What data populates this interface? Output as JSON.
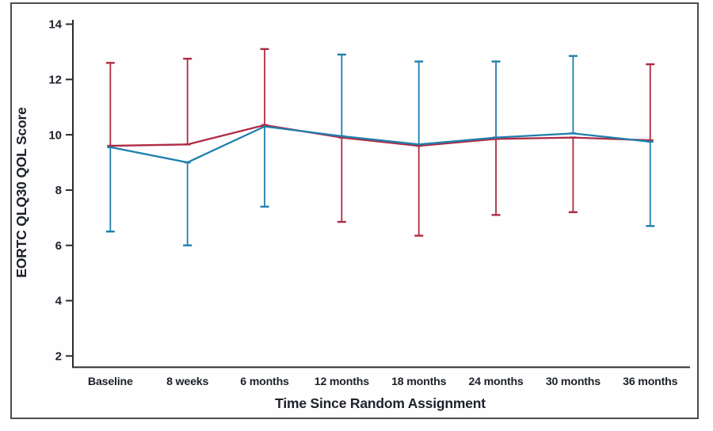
{
  "chart_data": {
    "type": "line",
    "title": "",
    "xlabel": "Time Since Random Assignment",
    "ylabel": "EORTC QLQ30 QOL Score",
    "categories": [
      "Baseline",
      "8 weeks",
      "6 months",
      "12 months",
      "18 months",
      "24 months",
      "30 months",
      "36 months"
    ],
    "yticks": [
      14,
      12,
      10,
      8,
      6,
      4,
      2
    ],
    "ylim": [
      2,
      14
    ],
    "grid": false,
    "legend_position": "none",
    "axis_color": "#2b2b2b",
    "text_color": "#1d212a",
    "series": [
      {
        "name": "red-arm",
        "color": "#b02a43",
        "values": [
          9.6,
          9.65,
          10.35,
          9.9,
          9.6,
          9.85,
          9.9,
          9.8
        ],
        "upper_ci": [
          12.6,
          12.75,
          13.1,
          null,
          null,
          null,
          null,
          12.55
        ],
        "lower_ci": [
          null,
          null,
          null,
          6.85,
          6.35,
          7.1,
          7.2,
          null
        ]
      },
      {
        "name": "blue-arm",
        "color": "#1f7fad",
        "values": [
          9.55,
          9.0,
          10.3,
          9.95,
          9.65,
          9.9,
          10.05,
          9.75
        ],
        "upper_ci": [
          null,
          null,
          null,
          12.9,
          12.65,
          12.65,
          12.85,
          null
        ],
        "lower_ci": [
          6.5,
          6.0,
          7.4,
          null,
          null,
          null,
          null,
          6.7
        ]
      }
    ]
  }
}
